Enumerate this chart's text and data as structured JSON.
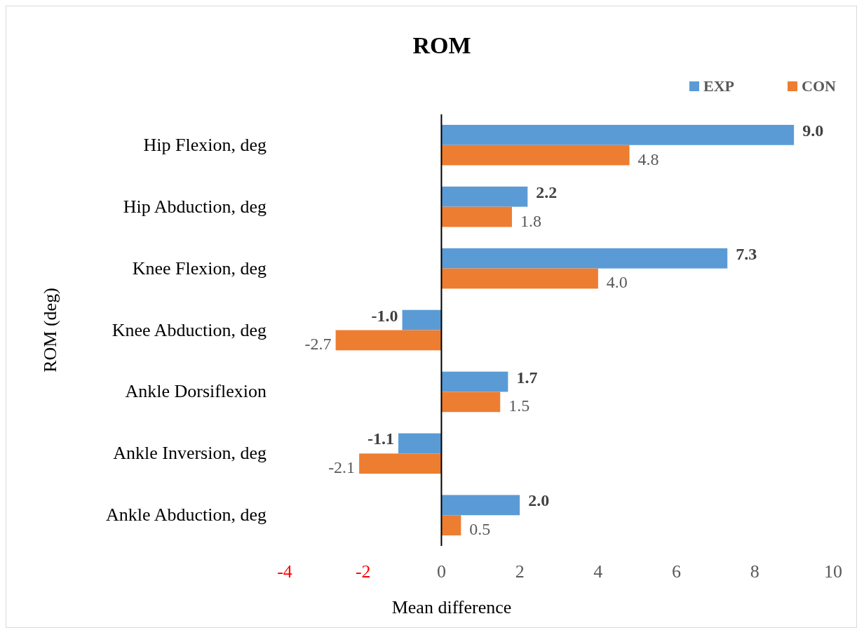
{
  "chart_data": {
    "type": "bar",
    "orientation": "horizontal",
    "title": "ROM",
    "xlabel": "Mean difference",
    "ylabel": "ROM (deg)",
    "categories": [
      "Hip Flexion, deg",
      "Hip Abduction, deg",
      "Knee Flexion, deg",
      "Knee Abduction, deg",
      "Ankle Dorsiflexion",
      "Ankle Inversion, deg",
      "Ankle Abduction, deg"
    ],
    "series": [
      {
        "name": "EXP",
        "color": "#5b9bd5",
        "values": [
          9.0,
          2.2,
          7.3,
          -1.0,
          1.7,
          -1.1,
          2.0
        ],
        "value_labels": [
          "9.0",
          "2.2",
          "7.3",
          "-1.0",
          "1.7",
          "-1.1",
          "2.0"
        ]
      },
      {
        "name": "CON",
        "color": "#ed7d31",
        "values": [
          4.8,
          1.8,
          4.0,
          -2.7,
          1.5,
          -2.1,
          0.5
        ],
        "value_labels": [
          "4.8",
          "1.8",
          "4.0",
          "-2.7",
          "1.5",
          "-2.1",
          "0.5"
        ]
      }
    ],
    "xlim": [
      -4,
      10
    ],
    "xticks": [
      -4,
      -2,
      0,
      2,
      4,
      6,
      8,
      10
    ],
    "legend": "top right"
  }
}
